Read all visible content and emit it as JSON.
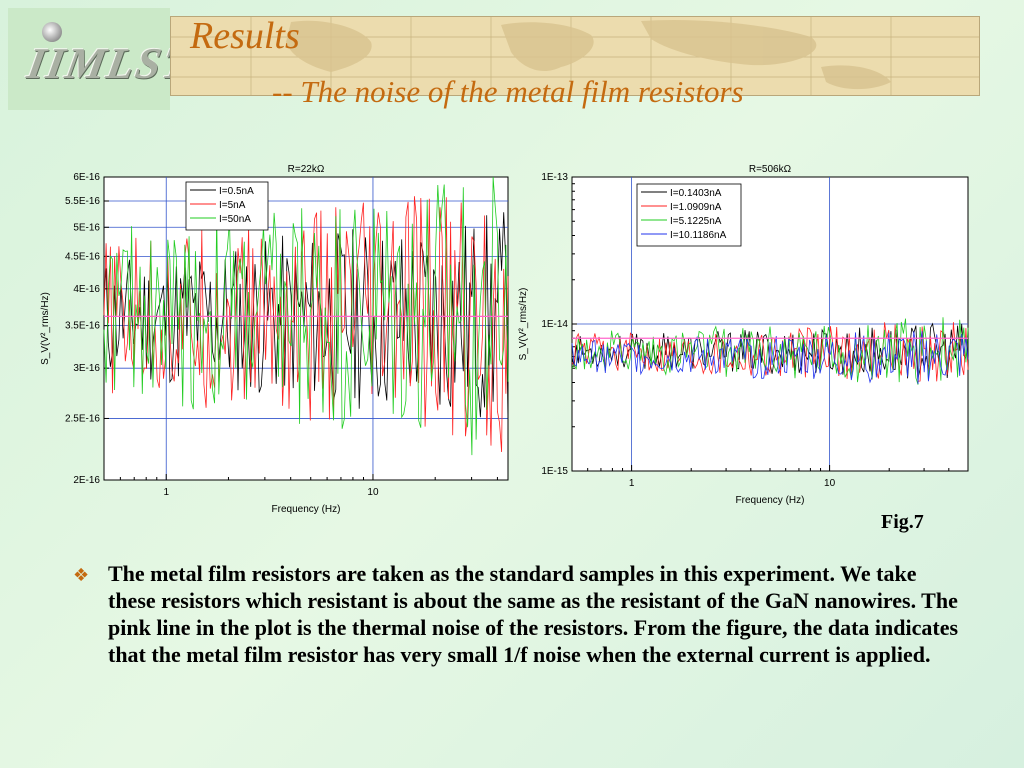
{
  "header": {
    "logo_text": "IIMLST",
    "title": "Results",
    "subtitle": "-- The noise of the metal film resistors"
  },
  "figure_label": "Fig.7",
  "bullet": {
    "icon": "diamond-bullet-icon",
    "text": "The metal film resistors are taken as the standard samples in this experiment. We take these resistors which resistant is about the same as the resistant of the GaN nanowires. The pink line in the plot is the thermal noise of the resistors. From the figure, the data indicates that the metal film resistor has very small 1/f noise when the external current is applied."
  },
  "colors": {
    "title": "#c46a10",
    "grid": "#3355cc",
    "thermal": "#ff66cc"
  },
  "chart_data": [
    {
      "type": "line",
      "title": "R=22kΩ",
      "xlabel": "Frequency (Hz)",
      "ylabel": "S_V(V²_rms/Hz)",
      "xscale": "log",
      "yscale": "log",
      "xlim": [
        0.5,
        45
      ],
      "ylim": [
        2e-16,
        6e-16
      ],
      "xticks": [
        "1",
        "10"
      ],
      "yticks": [
        "6E-16",
        "5.5E-16",
        "5E-16",
        "4.5E-16",
        "4E-16",
        "3.5E-16",
        "3E-16",
        "2.5E-16",
        "2E-16"
      ],
      "ytick_values": [
        6e-16,
        5.5e-16,
        5e-16,
        4.5e-16,
        4e-16,
        3.5e-16,
        3e-16,
        2.5e-16,
        2e-16
      ],
      "grid": true,
      "legend_position": "top-center",
      "thermal_noise_level": 3.62e-16,
      "series": [
        {
          "name": "I=0.5nA",
          "color": "#000000",
          "level": 3.6e-16,
          "spread": 0.16
        },
        {
          "name": "I=5nA",
          "color": "#ff2222",
          "level": 3.6e-16,
          "spread": 0.2
        },
        {
          "name": "I=50nA",
          "color": "#22cc22",
          "level": 3.7e-16,
          "spread": 0.22
        }
      ]
    },
    {
      "type": "line",
      "title": "R=506kΩ",
      "xlabel": "Frequency (Hz)",
      "ylabel": "S_V(V²_rms/Hz)",
      "xscale": "log",
      "yscale": "log",
      "xlim": [
        0.5,
        50
      ],
      "ylim": [
        1e-15,
        1e-13
      ],
      "xticks": [
        "1",
        "10"
      ],
      "yticks": [
        "1E-13",
        "1E-14",
        "1E-15"
      ],
      "ytick_values": [
        1e-13,
        1e-14,
        1e-15
      ],
      "grid": true,
      "legend_position": "top-center",
      "thermal_noise_level": 8e-15,
      "series": [
        {
          "name": "I=0.1403nA",
          "color": "#000000",
          "level": 6.5e-15,
          "spread": 0.18
        },
        {
          "name": "I=1.0909nA",
          "color": "#ff2222",
          "level": 6.5e-15,
          "spread": 0.2
        },
        {
          "name": "I=5.1225nA",
          "color": "#22cc22",
          "level": 6.5e-15,
          "spread": 0.22
        },
        {
          "name": "I=10.1186nA",
          "color": "#2233ee",
          "level": 6e-15,
          "spread": 0.18
        }
      ]
    }
  ]
}
